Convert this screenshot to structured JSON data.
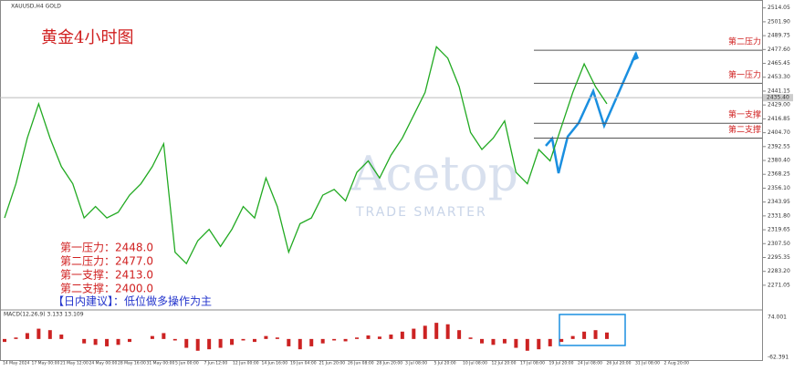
{
  "chart_data": {
    "type": "line",
    "symbol": "XAUUSD,H4 GOLD",
    "title": "黄金4小时图",
    "watermark": "Acetop",
    "watermark_sub": "TRADE SMARTER",
    "color": "#22aa22",
    "values": [
      2330,
      2360,
      2400,
      2430,
      2400,
      2375,
      2360,
      2330,
      2340,
      2330,
      2335,
      2350,
      2360,
      2375,
      2395,
      2300,
      2290,
      2310,
      2320,
      2305,
      2320,
      2340,
      2330,
      2365,
      2340,
      2300,
      2325,
      2330,
      2350,
      2355,
      2345,
      2370,
      2380,
      2365,
      2385,
      2400,
      2420,
      2440,
      2480,
      2470,
      2445,
      2405,
      2390,
      2400,
      2415,
      2370,
      2360,
      2390,
      2380,
      2410,
      2440,
      2465,
      2445,
      2430
    ],
    "ylim": [
      2251,
      2517
    ],
    "yticks": [
      {
        "value": 2514.05,
        "label": "2514.05"
      },
      {
        "value": 2501.9,
        "label": "2501.90"
      },
      {
        "value": 2489.75,
        "label": "2489.75"
      },
      {
        "value": 2477.6,
        "label": "2477.60"
      },
      {
        "value": 2465.45,
        "label": "2465.45"
      },
      {
        "value": 2453.3,
        "label": "2453.30"
      },
      {
        "value": 2441.15,
        "label": "2441.15"
      },
      {
        "value": 2429,
        "label": "2429.00"
      },
      {
        "value": 2416.85,
        "label": "2416.85"
      },
      {
        "value": 2404.7,
        "label": "2404.70"
      },
      {
        "value": 2392.55,
        "label": "2392.55"
      },
      {
        "value": 2380.4,
        "label": "2380.40"
      },
      {
        "value": 2368.25,
        "label": "2368.25"
      },
      {
        "value": 2356.1,
        "label": "2356.10"
      },
      {
        "value": 2343.95,
        "label": "2343.95"
      },
      {
        "value": 2331.8,
        "label": "2331.80"
      },
      {
        "value": 2319.65,
        "label": "2319.65"
      },
      {
        "value": 2307.5,
        "label": "2307.50"
      },
      {
        "value": 2295.35,
        "label": "2295.35"
      },
      {
        "value": 2283.2,
        "label": "2283.20"
      },
      {
        "value": 2271.05,
        "label": "2271.05"
      }
    ],
    "current_price": {
      "value": 2435.4,
      "label": "2435.40"
    },
    "x_labels": [
      "14 May 2024",
      "17 May 00:00",
      "21 May 12:00",
      "24 May 00:00",
      "28 May 16:00",
      "31 May 00:00",
      "5 Jun 00:00",
      "7 Jun 12:00",
      "12 Jun 00:00",
      "14 Jun 16:00",
      "19 Jun 04:00",
      "21 Jun 20:00",
      "26 Jun 08:00",
      "28 Jun 20:00",
      "3 Jul 08:00",
      "5 Jul 20:00",
      "10 Jul 08:00",
      "12 Jul 20:00",
      "17 Jul 08:00",
      "19 Jul 20:00",
      "24 Jul 08:00",
      "26 Jul 20:00",
      "31 Jul 08:00",
      "2 Aug 20:00"
    ],
    "levels": [
      {
        "name": "第二压力",
        "value": 2477
      },
      {
        "name": "第一压力",
        "value": 2448
      },
      {
        "name": "第一支撑",
        "value": 2413
      },
      {
        "name": "第二支撑",
        "value": 2400
      }
    ],
    "notes": [
      "第一压力：2448.0",
      "第二压力：2477.0",
      "第一支撑：2413.0",
      "第二支撑：2400.0"
    ],
    "advice": "【日内建议】：低位做多操作为主",
    "macd": {
      "label": "MACD(12,26,9) 3.133 13.109",
      "color": "#cc2222",
      "ylim": [
        -62.391,
        74.001
      ],
      "yticks": [
        {
          "value": 74.001,
          "label": "74.001"
        },
        {
          "value": -62.391,
          "label": "-62.391"
        }
      ],
      "values": [
        -10,
        5,
        20,
        35,
        30,
        15,
        0,
        -15,
        -20,
        -25,
        -20,
        -10,
        0,
        10,
        20,
        -5,
        -30,
        -40,
        -35,
        -30,
        -20,
        -5,
        -10,
        10,
        5,
        -25,
        -35,
        -25,
        -15,
        -5,
        -8,
        5,
        12,
        8,
        15,
        25,
        35,
        45,
        55,
        50,
        30,
        5,
        -15,
        -20,
        -15,
        -30,
        -40,
        -35,
        -25,
        -10,
        10,
        25,
        30,
        22
      ]
    }
  }
}
